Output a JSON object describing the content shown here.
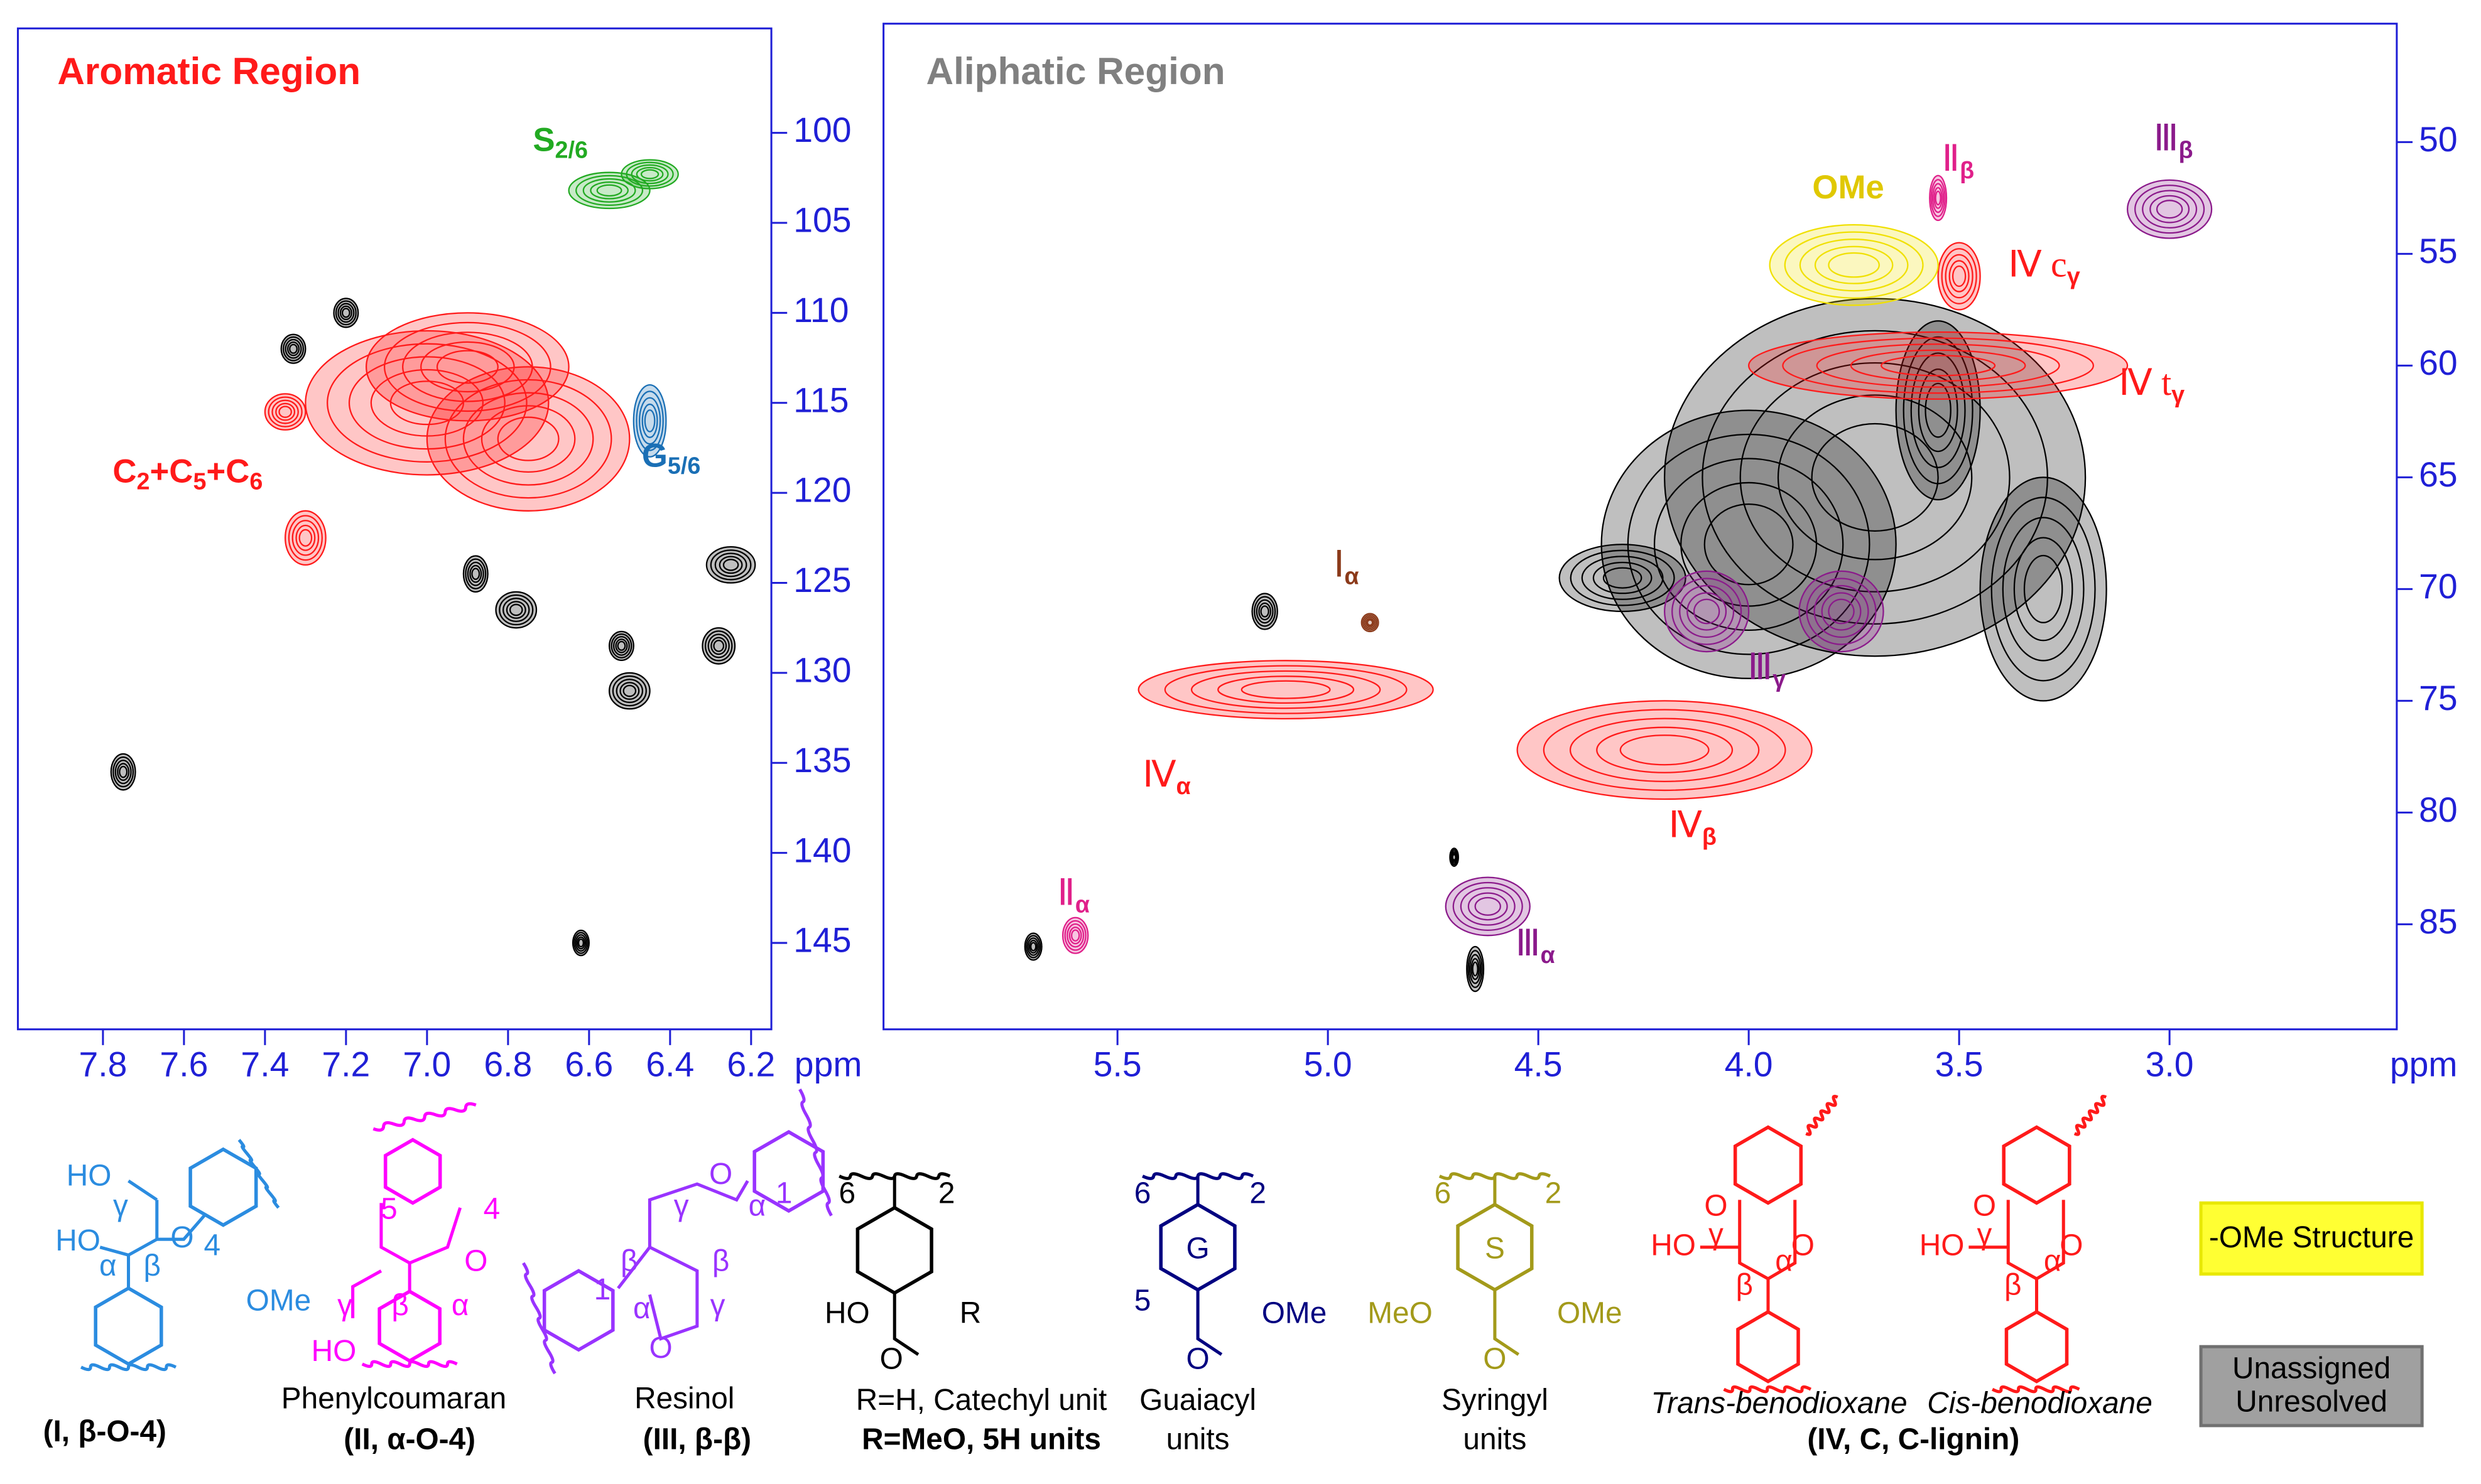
{
  "chart_data": [
    {
      "type": "contour",
      "title": "Aromatic Region",
      "title_color": "#ff1a1a",
      "xlabel": "ppm",
      "xlim": [
        8.01,
        6.15
      ],
      "ylim": [
        94.2,
        149.8
      ],
      "xticks": [
        7.8,
        7.6,
        7.4,
        7.2,
        {
          "value": 7,
          "label": "7.0"
        },
        6.8,
        6.6,
        6.4,
        6.2
      ],
      "yticks": [
        100,
        105,
        110,
        115,
        120,
        125,
        130,
        135,
        140,
        145
      ],
      "series": [
        {
          "color": "#22aa22",
          "x": [
            6.55,
            6.45
          ],
          "y": [
            103.2,
            102.3
          ],
          "rx": [
            0.1,
            0.07
          ],
          "ry": [
            1,
            0.8
          ]
        },
        {
          "color": "#ff1a1a",
          "x": [
            7.0,
            6.75,
            6.9,
            7.35,
            7.3
          ],
          "y": [
            115,
            117,
            113,
            115.5,
            122.5
          ],
          "rx": [
            0.3,
            0.25,
            0.25,
            0.05,
            0.05
          ],
          "ry": [
            4,
            4,
            3,
            1,
            1.5
          ]
        },
        {
          "color": "#1a6fb5",
          "x": [
            6.45
          ],
          "y": [
            116
          ],
          "rx": [
            0.04
          ],
          "ry": [
            2
          ]
        },
        {
          "color": "#000000",
          "x": [
            7.2,
            7.33,
            6.88,
            6.78,
            6.52,
            6.5,
            6.25,
            6.28,
            7.75,
            6.62
          ],
          "y": [
            110,
            112,
            124.5,
            126.5,
            128.5,
            131,
            124,
            128.5,
            135.5,
            145
          ],
          "rx": [
            0.03,
            0.03,
            0.03,
            0.05,
            0.03,
            0.05,
            0.06,
            0.04,
            0.03,
            0.02
          ],
          "ry": [
            0.8,
            0.8,
            1,
            1,
            0.8,
            1,
            1,
            1,
            1,
            0.7
          ]
        }
      ],
      "annotations": [
        {
          "color": "#22aa22",
          "parts": [
            {
              "t": "S"
            },
            {
              "sub": "2/6"
            }
          ]
        },
        {
          "color": "#ff1a1a",
          "parts": [
            {
              "t": "C"
            },
            {
              "sub": "2"
            },
            {
              "t": "+C"
            },
            {
              "sub": "5"
            },
            {
              "t": "+C"
            },
            {
              "sub": "6"
            }
          ]
        },
        {
          "color": "#1a6fb5",
          "parts": [
            {
              "t": "G"
            },
            {
              "sub": "5/6"
            }
          ]
        }
      ]
    },
    {
      "type": "contour",
      "title": "Aliphatic Region",
      "title_color": "#808080",
      "xlabel": "ppm",
      "xlim": [
        6.056,
        2.46
      ],
      "ylim": [
        44.7,
        89.7
      ],
      "xticks": [
        5.5,
        {
          "value": 5,
          "label": "5.0"
        },
        4.5,
        {
          "value": 4,
          "label": "4.0"
        },
        3.5,
        {
          "value": 3,
          "label": "3.0"
        }
      ],
      "yticks": [
        50,
        55,
        60,
        65,
        70,
        75,
        80,
        85
      ],
      "series": [
        {
          "color": "#000000",
          "x": [
            3.7,
            4.0,
            4.3,
            5.15,
            3.3,
            3.55,
            4.65,
            5.7,
            4.7
          ],
          "y": [
            65,
            68,
            69.5,
            71,
            70,
            62,
            87,
            86,
            82
          ],
          "rx": [
            0.5,
            0.35,
            0.15,
            0.03,
            0.15,
            0.1,
            0.02,
            0.02,
            0.01
          ],
          "ry": [
            8,
            6,
            1.5,
            0.8,
            5,
            4,
            1,
            0.6,
            0.4
          ]
        },
        {
          "color": "#ff1a1a",
          "x": [
            5.1,
            4.2,
            3.55,
            3.5
          ],
          "y": [
            74.5,
            77.2,
            60,
            56
          ],
          "rx": [
            0.35,
            0.35,
            0.45,
            0.05
          ],
          "ry": [
            1.3,
            2.2,
            1.5,
            1.5
          ]
        },
        {
          "color": "#f0e000",
          "x": [
            3.75
          ],
          "y": [
            55.5
          ],
          "rx": [
            0.2
          ],
          "ry": [
            1.8
          ]
        },
        {
          "color": "#8b1a8b",
          "x": [
            3.0,
            4.1,
            3.78,
            4.62
          ],
          "y": [
            53,
            71,
            71,
            84.2
          ],
          "rx": [
            0.1,
            0.1,
            0.1,
            0.1
          ],
          "ry": [
            1.3,
            1.8,
            1.8,
            1.3
          ]
        },
        {
          "color": "#e0208a",
          "x": [
            3.55,
            5.6
          ],
          "y": [
            52.5,
            85.5
          ],
          "rx": [
            0.02,
            0.03
          ],
          "ry": [
            1,
            0.8
          ]
        },
        {
          "color": "#8b3a1a",
          "x": [
            4.9
          ],
          "y": [
            71.5
          ],
          "rx": [
            0.02
          ],
          "ry": [
            0.4
          ]
        }
      ],
      "annotations": [
        {
          "color": "#e0c800",
          "parts": [
            {
              "t": "OMe"
            }
          ]
        },
        {
          "color": "#e0208a",
          "parts": [
            {
              "t": "Ⅱ"
            },
            {
              "sub": "β"
            }
          ]
        },
        {
          "color": "#ff1a1a",
          "parts": [
            {
              "t": "Ⅳ c"
            },
            {
              "sub": "γ"
            }
          ]
        },
        {
          "color": "#8b1a8b",
          "parts": [
            {
              "t": "Ⅲ"
            },
            {
              "sub": "β"
            }
          ]
        },
        {
          "color": "#ff1a1a",
          "parts": [
            {
              "t": "Ⅳ t"
            },
            {
              "sub": "γ"
            }
          ]
        },
        {
          "color": "#8b3a1a",
          "parts": [
            {
              "t": "Ⅰ"
            },
            {
              "sub": "α"
            }
          ]
        },
        {
          "color": "#8b1a8b",
          "parts": [
            {
              "t": "Ⅲ"
            },
            {
              "sub": "γ"
            }
          ]
        },
        {
          "color": "#ff1a1a",
          "parts": [
            {
              "t": "Ⅳ"
            },
            {
              "sub": "α"
            }
          ]
        },
        {
          "color": "#ff1a1a",
          "parts": [
            {
              "t": "Ⅳ"
            },
            {
              "sub": "β"
            }
          ]
        },
        {
          "color": "#e0208a",
          "parts": [
            {
              "t": "Ⅱ"
            },
            {
              "sub": "α"
            }
          ]
        },
        {
          "color": "#8b1a8b",
          "parts": [
            {
              "t": "Ⅲ"
            },
            {
              "sub": "α"
            }
          ]
        }
      ]
    }
  ],
  "structures": [
    {
      "color": "#2b8ce0",
      "labels": [
        "HO",
        "γ",
        "HO",
        "α",
        "β",
        "O",
        "4",
        "OMe"
      ],
      "caption": [
        "(I, β-O-4)"
      ]
    },
    {
      "color": "#ff00ff",
      "labels": [
        "5",
        "4",
        "γ",
        "β",
        "α",
        "HO",
        "O"
      ],
      "caption": [
        "Phenylcoumaran",
        "(II, α-O-4)"
      ]
    },
    {
      "color": "#9933ff",
      "labels": [
        "γ",
        "O",
        "α",
        "β",
        "β",
        "1",
        "1",
        "α",
        "O",
        "γ"
      ],
      "caption": [
        "Resinol",
        "(III, β-β)"
      ]
    },
    {
      "color": "#000000",
      "labels": [
        "6",
        "2",
        "HO",
        "R",
        "O"
      ],
      "caption": [
        "R=H, Catechyl unit",
        "R=MeO, 5H units"
      ]
    },
    {
      "color": "#000080",
      "labels": [
        "6",
        "2",
        "G",
        "5",
        "OMe",
        "O"
      ],
      "caption": [
        "Guaiacyl",
        "units"
      ]
    },
    {
      "color": "#a39a1a",
      "labels": [
        "6",
        "2",
        "S",
        "MeO",
        "OMe",
        "O"
      ],
      "caption": [
        "Syringyl",
        "units"
      ]
    },
    {
      "color": "#ff1a1a",
      "labels": [
        "HO",
        "γ",
        "β",
        "α",
        "O",
        "O"
      ],
      "caption": [
        "Trans-benodioxane"
      ]
    },
    {
      "color": "#ff1a1a",
      "labels": [
        "HO",
        "γ",
        "β",
        "α",
        "O",
        "O"
      ],
      "caption": [
        "Cis-benodioxane"
      ]
    }
  ],
  "group_caption": "(IV, C, C-lignin)",
  "legend": [
    {
      "label": "-OMe Structure",
      "color": "#ffff33"
    },
    {
      "label": [
        "Unassigned",
        "Unresolved"
      ],
      "color": "#a0a0a0"
    }
  ]
}
